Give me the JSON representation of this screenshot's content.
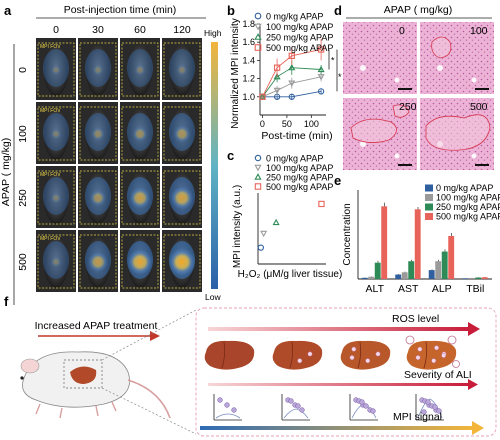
{
  "panels": {
    "a": {
      "letter": "a",
      "header": "Post-injection time (min)",
      "times": [
        "0",
        "30",
        "60",
        "120"
      ],
      "y_title": "APAP ( mg/kg)",
      "doses": [
        "0",
        "100",
        "250",
        "500"
      ],
      "fov_label": "MPI FOV",
      "colorbar_high": "High",
      "colorbar_low": "Low",
      "intensity": [
        [
          0.08,
          0.1,
          0.12,
          0.12
        ],
        [
          0.1,
          0.22,
          0.3,
          0.38
        ],
        [
          0.1,
          0.35,
          0.55,
          0.62
        ],
        [
          0.1,
          0.5,
          0.72,
          0.8
        ]
      ]
    },
    "b": {
      "letter": "b",
      "significance": [
        "*",
        "*"
      ]
    },
    "c": {
      "letter": "c"
    },
    "d": {
      "letter": "d",
      "header": "APAP ( mg/kg)",
      "doses": [
        "0",
        "100",
        "250",
        "500"
      ]
    },
    "e": {
      "letter": "e"
    },
    "f": {
      "letter": "f",
      "treatment_label": "Increased APAP treatment",
      "ros_label": "ROS level",
      "severity_label": "Severity of ALI",
      "mpi_label": "MPI signal"
    }
  },
  "colors": {
    "dose0": "#2f5f9e",
    "dose100": "#9a9a9a",
    "dose250": "#2e8b57",
    "dose500": "#e8645a",
    "heat_low": "#2b5fa8",
    "heat_high": "#f2b53a",
    "he_bg": "#e6a8d0",
    "liver": "#b24a2a"
  },
  "chart_data": [
    {
      "id": "b",
      "type": "line",
      "xlabel": "Post-time (min)",
      "ylabel": "Normalized MPI intensity",
      "xlim": [
        -5,
        130
      ],
      "ylim": [
        0.8,
        1.8
      ],
      "xticks": [
        0,
        50,
        100
      ],
      "yticks": [
        1.0,
        1.2,
        1.4,
        1.6,
        1.8
      ],
      "legend_position": "top-left",
      "series": [
        {
          "name": "0 mg/kg APAP",
          "x": [
            0,
            30,
            60,
            120
          ],
          "y": [
            1.0,
            1.0,
            1.0,
            1.06
          ],
          "err": [
            0.01,
            0.03,
            0.03,
            0.02
          ],
          "marker": "circle"
        },
        {
          "name": "100 mg/kg APAP",
          "x": [
            0,
            30,
            60,
            120
          ],
          "y": [
            1.0,
            1.07,
            1.15,
            1.22
          ],
          "err": [
            0.01,
            0.05,
            0.06,
            0.05
          ],
          "marker": "triangle-down"
        },
        {
          "name": "250 mg/kg APAP",
          "x": [
            0,
            30,
            60,
            120
          ],
          "y": [
            1.0,
            1.22,
            1.32,
            1.3
          ],
          "err": [
            0.01,
            0.06,
            0.08,
            0.05
          ],
          "marker": "triangle-up"
        },
        {
          "name": "500 mg/kg APAP",
          "x": [
            0,
            30,
            60,
            120
          ],
          "y": [
            1.0,
            1.32,
            1.45,
            1.52
          ],
          "err": [
            0.01,
            0.1,
            0.1,
            0.12
          ],
          "marker": "square"
        }
      ]
    },
    {
      "id": "c",
      "type": "scatter",
      "xlabel": "H₂O₂ (μM/g liver tissue)",
      "ylabel": "MPI intensity (a.u.)",
      "xlim": [
        0,
        120
      ],
      "ylim": [
        60,
        125
      ],
      "legend_position": "top-left",
      "series": [
        {
          "name": "0 mg/kg APAP",
          "x": [
            5
          ],
          "y": [
            75
          ],
          "marker": "circle"
        },
        {
          "name": "100 mg/kg APAP",
          "x": [
            10
          ],
          "y": [
            88
          ],
          "marker": "triangle-down"
        },
        {
          "name": "250 mg/kg APAP",
          "x": [
            32
          ],
          "y": [
            98
          ],
          "marker": "triangle-up"
        },
        {
          "name": "500 mg/kg APAP",
          "x": [
            112
          ],
          "y": [
            115
          ],
          "marker": "square"
        }
      ]
    },
    {
      "id": "e",
      "type": "bar",
      "ylabel": "Concentration",
      "categories": [
        "ALT",
        "AST",
        "ALP",
        "TBil"
      ],
      "ylim": [
        0,
        600
      ],
      "legend_position": "top-right",
      "series": [
        {
          "name": "0 mg/kg APAP",
          "values": [
            8,
            30,
            60,
            5
          ],
          "err": [
            2,
            4,
            6,
            1
          ]
        },
        {
          "name": "100 mg/kg APAP",
          "values": [
            15,
            45,
            120,
            7
          ],
          "err": [
            3,
            5,
            10,
            1
          ]
        },
        {
          "name": "250 mg/kg APAP",
          "values": [
            110,
            120,
            185,
            10
          ],
          "err": [
            12,
            10,
            15,
            2
          ]
        },
        {
          "name": "500 mg/kg APAP",
          "values": [
            490,
            470,
            290,
            12
          ],
          "err": [
            25,
            15,
            20,
            2
          ]
        }
      ]
    }
  ]
}
